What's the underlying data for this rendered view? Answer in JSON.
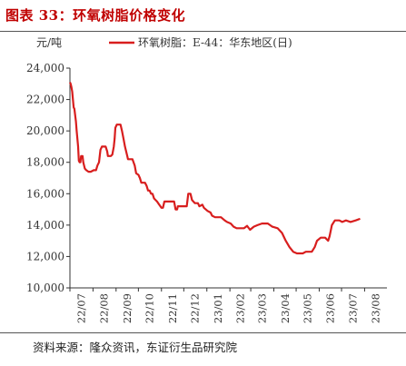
{
  "figure": {
    "title": "图表 33：环氧树脂价格变化",
    "source": "资料来源：隆众资讯，东证衍生品研究院"
  },
  "chart_data": {
    "type": "line",
    "ylabel": "元/吨",
    "ylim": [
      10000,
      24000
    ],
    "yticks": [
      10000,
      12000,
      14000,
      16000,
      18000,
      20000,
      22000,
      24000
    ],
    "ytick_labels": [
      "10,000",
      "12,000",
      "14,000",
      "16,000",
      "18,000",
      "20,000",
      "22,000",
      "24,000"
    ],
    "xlim": [
      "2022-07-01",
      "2023-08-31"
    ],
    "xtick_labels": [
      "22/07",
      "22/08",
      "22/09",
      "22/10",
      "22/11",
      "22/12",
      "23/01",
      "23/02",
      "23/03",
      "23/04",
      "23/05",
      "23/06",
      "23/07",
      "23/08"
    ],
    "xtick_dates": [
      "2022-07-01",
      "2022-08-01",
      "2022-09-01",
      "2022-10-01",
      "2022-11-01",
      "2022-12-01",
      "2023-01-01",
      "2023-02-01",
      "2023-03-01",
      "2023-04-01",
      "2023-05-01",
      "2023-06-01",
      "2023-07-01",
      "2023-08-01"
    ],
    "grid": false,
    "legend_position": "top-center",
    "series": [
      {
        "name": "环氧树脂：E-44：华东地区(日)",
        "color": "#d81e1e",
        "points": [
          [
            "2022-07-01",
            23100
          ],
          [
            "2022-07-02",
            23000
          ],
          [
            "2022-07-03",
            22800
          ],
          [
            "2022-07-04",
            22500
          ],
          [
            "2022-07-05",
            22000
          ],
          [
            "2022-07-06",
            21500
          ],
          [
            "2022-07-07",
            21400
          ],
          [
            "2022-07-09",
            20600
          ],
          [
            "2022-07-10",
            20000
          ],
          [
            "2022-07-12",
            19000
          ],
          [
            "2022-07-13",
            18100
          ],
          [
            "2022-07-14",
            18000
          ],
          [
            "2022-07-15",
            18000
          ],
          [
            "2022-07-16",
            18400
          ],
          [
            "2022-07-18",
            18400
          ],
          [
            "2022-07-19",
            18000
          ],
          [
            "2022-07-21",
            17600
          ],
          [
            "2022-07-23",
            17500
          ],
          [
            "2022-07-26",
            17400
          ],
          [
            "2022-07-29",
            17400
          ],
          [
            "2022-08-02",
            17500
          ],
          [
            "2022-08-05",
            17500
          ],
          [
            "2022-08-07",
            17800
          ],
          [
            "2022-08-09",
            18000
          ],
          [
            "2022-08-10",
            18400
          ],
          [
            "2022-08-11",
            18800
          ],
          [
            "2022-08-13",
            19000
          ],
          [
            "2022-08-16",
            19000
          ],
          [
            "2022-08-18",
            19000
          ],
          [
            "2022-08-20",
            18700
          ],
          [
            "2022-08-21",
            18400
          ],
          [
            "2022-08-25",
            18400
          ],
          [
            "2022-08-27",
            18500
          ],
          [
            "2022-08-29",
            19000
          ],
          [
            "2022-08-30",
            19500
          ],
          [
            "2022-08-31",
            20200
          ],
          [
            "2022-09-01",
            20300
          ],
          [
            "2022-09-02",
            20400
          ],
          [
            "2022-09-07",
            20400
          ],
          [
            "2022-09-09",
            20000
          ],
          [
            "2022-09-11",
            19500
          ],
          [
            "2022-09-13",
            19000
          ],
          [
            "2022-09-16",
            18400
          ],
          [
            "2022-09-17",
            18200
          ],
          [
            "2022-09-20",
            18200
          ],
          [
            "2022-09-23",
            18200
          ],
          [
            "2022-09-26",
            17800
          ],
          [
            "2022-09-28",
            17300
          ],
          [
            "2022-10-01",
            17200
          ],
          [
            "2022-10-03",
            17000
          ],
          [
            "2022-10-05",
            16700
          ],
          [
            "2022-10-10",
            16700
          ],
          [
            "2022-10-12",
            16500
          ],
          [
            "2022-10-14",
            16200
          ],
          [
            "2022-10-16",
            16200
          ],
          [
            "2022-10-18",
            16000
          ],
          [
            "2022-10-20",
            16000
          ],
          [
            "2022-10-22",
            15700
          ],
          [
            "2022-10-26",
            15500
          ],
          [
            "2022-10-29",
            15300
          ],
          [
            "2022-11-01",
            15100
          ],
          [
            "2022-11-03",
            15100
          ],
          [
            "2022-11-05",
            15500
          ],
          [
            "2022-11-18",
            15500
          ],
          [
            "2022-11-20",
            15000
          ],
          [
            "2022-11-22",
            15000
          ],
          [
            "2022-11-23",
            15200
          ],
          [
            "2022-12-05",
            15200
          ],
          [
            "2022-12-07",
            16000
          ],
          [
            "2022-12-10",
            16000
          ],
          [
            "2022-12-12",
            15600
          ],
          [
            "2022-12-16",
            15400
          ],
          [
            "2022-12-20",
            15400
          ],
          [
            "2022-12-22",
            15200
          ],
          [
            "2022-12-26",
            15300
          ],
          [
            "2022-12-28",
            15100
          ],
          [
            "2023-01-02",
            14900
          ],
          [
            "2023-01-06",
            14800
          ],
          [
            "2023-01-08",
            14600
          ],
          [
            "2023-01-12",
            14500
          ],
          [
            "2023-01-20",
            14500
          ],
          [
            "2023-01-25",
            14300
          ],
          [
            "2023-01-28",
            14200
          ],
          [
            "2023-02-02",
            14100
          ],
          [
            "2023-02-06",
            13900
          ],
          [
            "2023-02-10",
            13800
          ],
          [
            "2023-02-20",
            13800
          ],
          [
            "2023-02-24",
            13950
          ],
          [
            "2023-02-28",
            13700
          ],
          [
            "2023-03-05",
            13900
          ],
          [
            "2023-03-10",
            14000
          ],
          [
            "2023-03-16",
            14100
          ],
          [
            "2023-03-24",
            14100
          ],
          [
            "2023-03-30",
            13900
          ],
          [
            "2023-04-06",
            13800
          ],
          [
            "2023-04-12",
            13500
          ],
          [
            "2023-04-17",
            13000
          ],
          [
            "2023-04-22",
            12600
          ],
          [
            "2023-04-27",
            12300
          ],
          [
            "2023-05-02",
            12200
          ],
          [
            "2023-05-10",
            12200
          ],
          [
            "2023-05-14",
            12300
          ],
          [
            "2023-05-22",
            12300
          ],
          [
            "2023-05-26",
            12600
          ],
          [
            "2023-05-29",
            13000
          ],
          [
            "2023-06-03",
            13200
          ],
          [
            "2023-06-09",
            13200
          ],
          [
            "2023-06-13",
            13000
          ],
          [
            "2023-06-15",
            13300
          ],
          [
            "2023-06-18",
            14000
          ],
          [
            "2023-06-22",
            14300
          ],
          [
            "2023-06-28",
            14300
          ],
          [
            "2023-07-02",
            14200
          ],
          [
            "2023-07-07",
            14300
          ],
          [
            "2023-07-13",
            14200
          ],
          [
            "2023-07-20",
            14300
          ],
          [
            "2023-07-26",
            14400
          ]
        ]
      }
    ]
  }
}
